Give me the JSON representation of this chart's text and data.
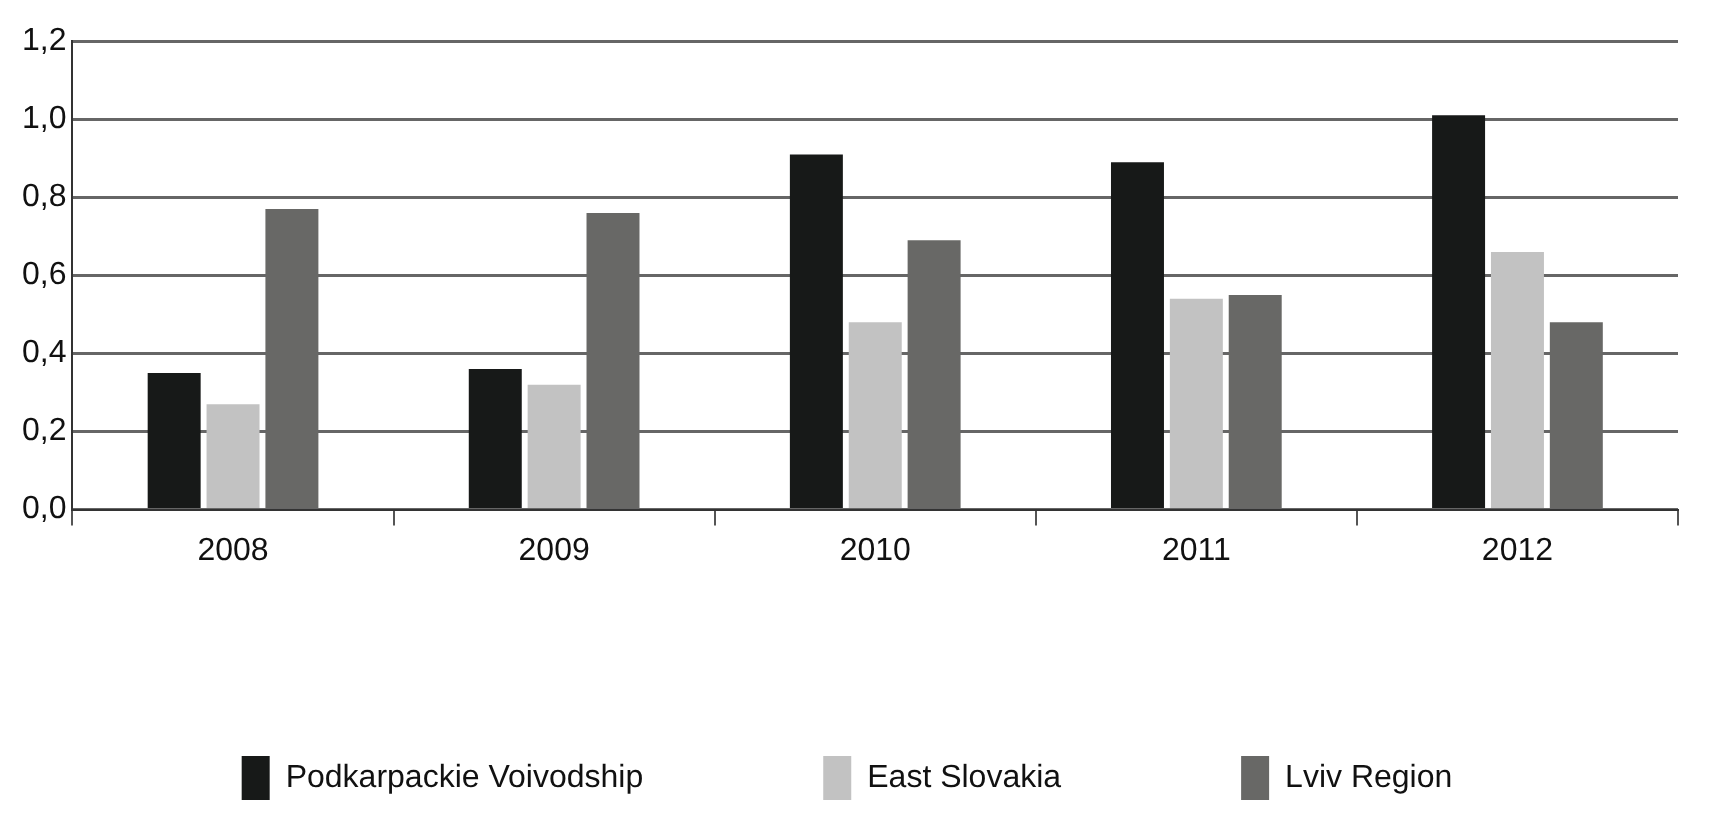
{
  "chart_data": {
    "type": "bar",
    "categories": [
      "2008",
      "2009",
      "2010",
      "2011",
      "2012"
    ],
    "series": [
      {
        "name": "Podkarpackie Voivodship",
        "color": "#171918",
        "values": [
          0.35,
          0.36,
          0.91,
          0.89,
          1.01
        ]
      },
      {
        "name": "East Slovakia",
        "color": "#c2c2c2",
        "values": [
          0.27,
          0.32,
          0.48,
          0.54,
          0.66
        ]
      },
      {
        "name": "Lviv Region",
        "color": "#686866",
        "values": [
          0.77,
          0.76,
          0.69,
          0.55,
          0.48
        ]
      }
    ],
    "ylim": [
      0,
      1.2
    ],
    "yticks": [
      {
        "value": 0,
        "label": "0,0"
      },
      {
        "value": 0.2,
        "label": "0,2"
      },
      {
        "value": 0.4,
        "label": "0,4"
      },
      {
        "value": 0.6,
        "label": "0,6"
      },
      {
        "value": 0.8,
        "label": "0,8"
      },
      {
        "value": 1,
        "label": "1,0"
      },
      {
        "value": 1.2,
        "label": "1,2"
      }
    ],
    "grid": "y",
    "legend": "bottom"
  }
}
